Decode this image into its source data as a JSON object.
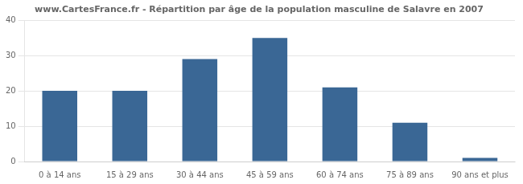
{
  "chart_data": {
    "type": "bar",
    "title": "www.CartesFrance.fr - Répartition par âge de la population masculine de Salavre en 2007",
    "categories": [
      "0 à 14 ans",
      "15 à 29 ans",
      "30 à 44 ans",
      "45 à 59 ans",
      "60 à 74 ans",
      "75 à 89 ans",
      "90 ans et plus"
    ],
    "values": [
      20,
      20,
      29,
      35,
      21,
      11,
      1
    ],
    "color": "#3a6795",
    "ylim": [
      0,
      40
    ],
    "yticks": [
      0,
      10,
      20,
      30,
      40
    ],
    "grid": true
  }
}
